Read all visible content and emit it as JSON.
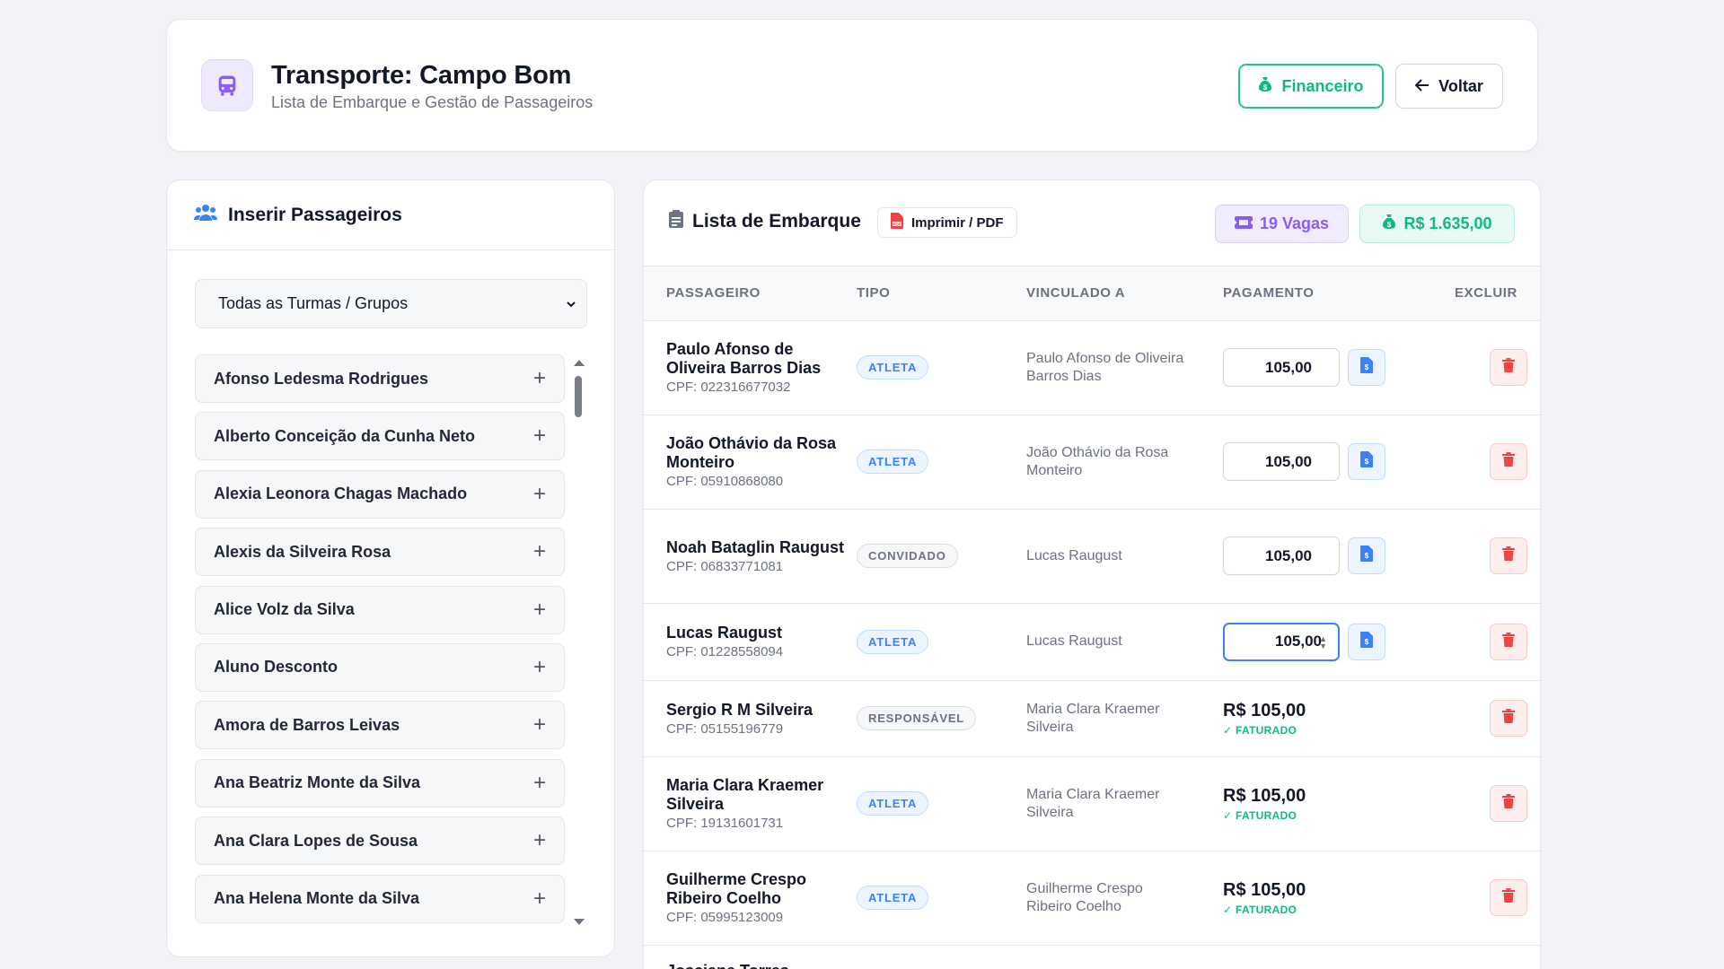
{
  "header": {
    "title": "Transporte: Campo Bom",
    "subtitle": "Lista de Embarque e Gestão de Passageiros",
    "financeiro_label": "Financeiro",
    "voltar_label": "Voltar"
  },
  "left_panel": {
    "title": "Inserir Passageiros",
    "group_select": "Todas as Turmas / Grupos",
    "people": [
      "Afonso Ledesma Rodrigues",
      "Alberto Conceição da Cunha Neto",
      "Alexia Leonora Chagas Machado",
      "Alexis da Silveira Rosa",
      "Alice Volz da Silva",
      "Aluno Desconto",
      "Amora de Barros Leivas",
      "Ana Beatriz Monte da Silva",
      "Ana Clara Lopes de Sousa",
      "Ana Helena Monte da Silva"
    ]
  },
  "right_panel": {
    "title": "Lista de Embarque",
    "print_label": "Imprimir / PDF",
    "vagas": "19 Vagas",
    "total": "R$ 1.635,00",
    "columns": [
      "PASSAGEIRO",
      "TIPO",
      "VINCULADO A",
      "PAGAMENTO",
      "EXCLUIR"
    ],
    "rows": [
      {
        "name": "Paulo Afonso de Oliveira Barros Dias",
        "cpf": "CPF: 022316677032",
        "tipo": "ATLETA",
        "vinculado": "Paulo Afonso de Oliveira Barros Dias",
        "valor": "105,00",
        "faturado": false
      },
      {
        "name": "João Othávio da Rosa Monteiro",
        "cpf": "CPF: 05910868080",
        "tipo": "ATLETA",
        "vinculado": "João Othávio da Rosa Monteiro",
        "valor": "105,00",
        "faturado": false
      },
      {
        "name": "Noah Bataglin Raugust",
        "cpf": "CPF: 06833771081",
        "tipo": "CONVIDADO",
        "vinculado": "Lucas Raugust",
        "valor": "105,00",
        "faturado": false
      },
      {
        "name": "Lucas Raugust",
        "cpf": "CPF: 01228558094",
        "tipo": "ATLETA",
        "vinculado": "Lucas Raugust",
        "valor": "105,00",
        "faturado": false
      },
      {
        "name": "Sergio R M Silveira",
        "cpf": "CPF: 05155196779",
        "tipo": "RESPONSÁVEL",
        "vinculado": "Maria Clara Kraemer Silveira",
        "valor": "R$ 105,00",
        "faturado": true,
        "status": "FATURADO"
      },
      {
        "name": "Maria Clara Kraemer Silveira",
        "cpf": "CPF: 19131601731",
        "tipo": "ATLETA",
        "vinculado": "Maria Clara Kraemer Silveira",
        "valor": "R$ 105,00",
        "faturado": true,
        "status": "FATURADO"
      },
      {
        "name": "Guilherme Crespo Ribeiro Coelho",
        "cpf": "CPF: 05995123009",
        "tipo": "ATLETA",
        "vinculado": "Guilherme Crespo Ribeiro Coelho",
        "valor": "R$ 105,00",
        "faturado": true,
        "status": "FATURADO"
      },
      {
        "name": "Josciane Torres",
        "cpf": "",
        "tipo": "",
        "vinculado": "",
        "valor": "",
        "faturado": false
      }
    ]
  },
  "colors": {
    "accent_green": "#10b981",
    "accent_purple": "#8b5cf6",
    "accent_blue": "#3b82f6",
    "danger_red": "#ef4444"
  }
}
